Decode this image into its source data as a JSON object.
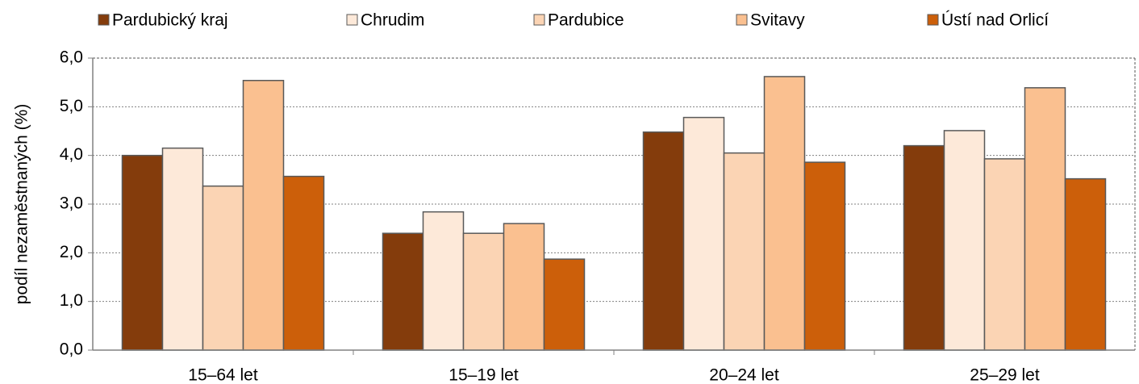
{
  "chart_data": {
    "type": "bar",
    "y_label": "podíl nezaměstnaných (%)",
    "categories": [
      "15–64 let",
      "15–19 let",
      "20–24 let",
      "25–29 let"
    ],
    "series": [
      {
        "name": "Pardubický kraj",
        "color": "#843c0c",
        "values": [
          4.0,
          2.4,
          4.48,
          4.2
        ]
      },
      {
        "name": "Chrudim",
        "color": "#fde9d9",
        "values": [
          4.15,
          2.84,
          4.78,
          4.51
        ]
      },
      {
        "name": "Pardubice",
        "color": "#fbd4b4",
        "values": [
          3.37,
          2.4,
          4.05,
          3.93
        ]
      },
      {
        "name": "Svitavy",
        "color": "#fac090",
        "values": [
          5.54,
          2.6,
          5.62,
          5.39
        ]
      },
      {
        "name": "Ústí nad Orlicí",
        "color": "#cc5f0a",
        "values": [
          3.57,
          1.87,
          3.86,
          3.52
        ]
      }
    ],
    "ylim": [
      0,
      6
    ],
    "yticks": [
      {
        "value": 0,
        "label": "0,0"
      },
      {
        "value": 1,
        "label": "1,0"
      },
      {
        "value": 2,
        "label": "2,0"
      },
      {
        "value": 3,
        "label": "3,0"
      },
      {
        "value": 4,
        "label": "4,0"
      },
      {
        "value": 5,
        "label": "5,0"
      },
      {
        "value": 6,
        "label": "6,0"
      }
    ],
    "grid": true
  }
}
